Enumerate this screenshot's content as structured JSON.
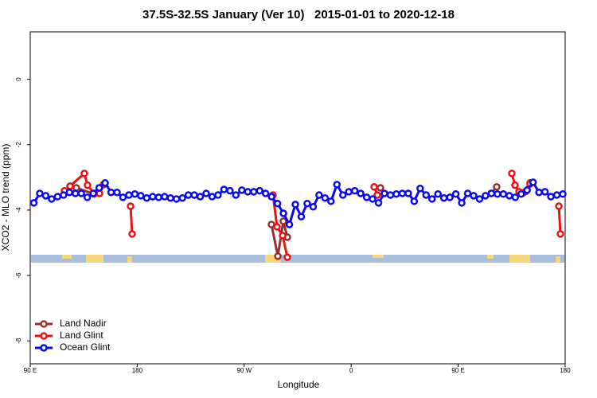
{
  "chart_data": {
    "type": "line",
    "title": "37.5S-32.5S January (Ver 10)   2015-01-01 to 2020-12-18",
    "x_label": "Longitude",
    "y_label": "XCO2 - MLO trend (ppm)",
    "xlim": [
      90,
      540
    ],
    "ylim": [
      -8.7,
      1.45
    ],
    "xticks": [
      {
        "value": 90,
        "label": "90 E"
      },
      {
        "value": 180,
        "label": "180"
      },
      {
        "value": 270,
        "label": "90 W"
      },
      {
        "value": 360,
        "label": "0"
      },
      {
        "value": 450,
        "label": "90 E"
      },
      {
        "value": 540,
        "label": "180"
      }
    ],
    "yticks": [
      0,
      -2,
      -4,
      -6,
      -8
    ],
    "legend": "bottom-left",
    "series": [
      {
        "name": "Land Nadir",
        "color": "#9b3030",
        "x": [
          123.5,
          128.8,
          143.6,
          148.3,
          220,
          292.9,
          298.3,
          302.9,
          306.3,
          340,
          384.6,
          420,
          477.7,
          482.4,
          485,
          503.9,
          510.5
        ],
        "values": [
          -3.27,
          -3.32,
          -3.51,
          -3.32,
          null,
          -4.44,
          -5.41,
          -4.34,
          -4.83,
          null,
          -3.32,
          null,
          -3.49,
          -3.29,
          null,
          -3.49,
          -3.17
        ]
      },
      {
        "name": "Land Glint",
        "color": "#ee1111",
        "x": [
          118.8,
          123.5,
          135.5,
          138.2,
          143.6,
          148.3,
          151.6,
          160,
          174.4,
          175.7,
          230,
          294.2,
          297.6,
          302.3,
          306.3,
          340,
          379.3,
          382.0,
          440,
          495.1,
          497.8,
          501.2,
          506.5,
          510.5,
          520,
          534.7,
          536.0
        ],
        "values": [
          -3.41,
          -3.27,
          -2.88,
          -3.24,
          -3.49,
          -3.49,
          -3.22,
          null,
          -3.88,
          -4.73,
          null,
          -3.54,
          -4.51,
          -4.78,
          -5.44,
          null,
          -3.29,
          -3.54,
          null,
          -2.88,
          -3.24,
          -3.44,
          -3.44,
          -3.2,
          null,
          -3.88,
          -4.73
        ]
      },
      {
        "name": "Ocean Glint",
        "color": "#0a0af0",
        "x": [
          93,
          98,
          103,
          108,
          113,
          118,
          123,
          128,
          133,
          138,
          143,
          148,
          153,
          158,
          163,
          168,
          173,
          178,
          183,
          188,
          193,
          198,
          203,
          208,
          213,
          218,
          223,
          228,
          233,
          238,
          243,
          248,
          253,
          258,
          263,
          268,
          273,
          278,
          283,
          288,
          293,
          298,
          303,
          308,
          313,
          318,
          323,
          328,
          333,
          338,
          343,
          348,
          353,
          358,
          363,
          368,
          373,
          378,
          383,
          388,
          393,
          398,
          403,
          408,
          413,
          418,
          423,
          428,
          433,
          438,
          443,
          448,
          453,
          458,
          463,
          468,
          473,
          478,
          483,
          488,
          493,
          498,
          503,
          508,
          513,
          518,
          523,
          528,
          533,
          538
        ],
        "values": [
          -3.78,
          -3.49,
          -3.56,
          -3.66,
          -3.59,
          -3.54,
          -3.46,
          -3.49,
          -3.49,
          -3.61,
          -3.49,
          -3.32,
          -3.17,
          -3.46,
          -3.46,
          -3.61,
          -3.54,
          -3.51,
          -3.56,
          -3.63,
          -3.59,
          -3.61,
          -3.59,
          -3.63,
          -3.66,
          -3.63,
          -3.54,
          -3.54,
          -3.59,
          -3.49,
          -3.59,
          -3.54,
          -3.37,
          -3.41,
          -3.54,
          -3.39,
          -3.44,
          -3.44,
          -3.41,
          -3.49,
          -3.59,
          -3.8,
          -4.1,
          -4.44,
          -3.83,
          -4.2,
          -3.8,
          -3.9,
          -3.54,
          -3.63,
          -3.73,
          -3.22,
          -3.54,
          -3.44,
          -3.41,
          -3.49,
          -3.61,
          -3.66,
          -3.78,
          -3.49,
          -3.54,
          -3.51,
          -3.49,
          -3.49,
          -3.73,
          -3.34,
          -3.54,
          -3.66,
          -3.51,
          -3.63,
          -3.61,
          -3.51,
          -3.78,
          -3.49,
          -3.56,
          -3.66,
          -3.56,
          -3.49,
          -3.51,
          -3.51,
          -3.56,
          -3.61,
          -3.51,
          -3.39,
          -3.15,
          -3.46,
          -3.44,
          -3.59,
          -3.54,
          -3.51
        ]
      }
    ]
  }
}
